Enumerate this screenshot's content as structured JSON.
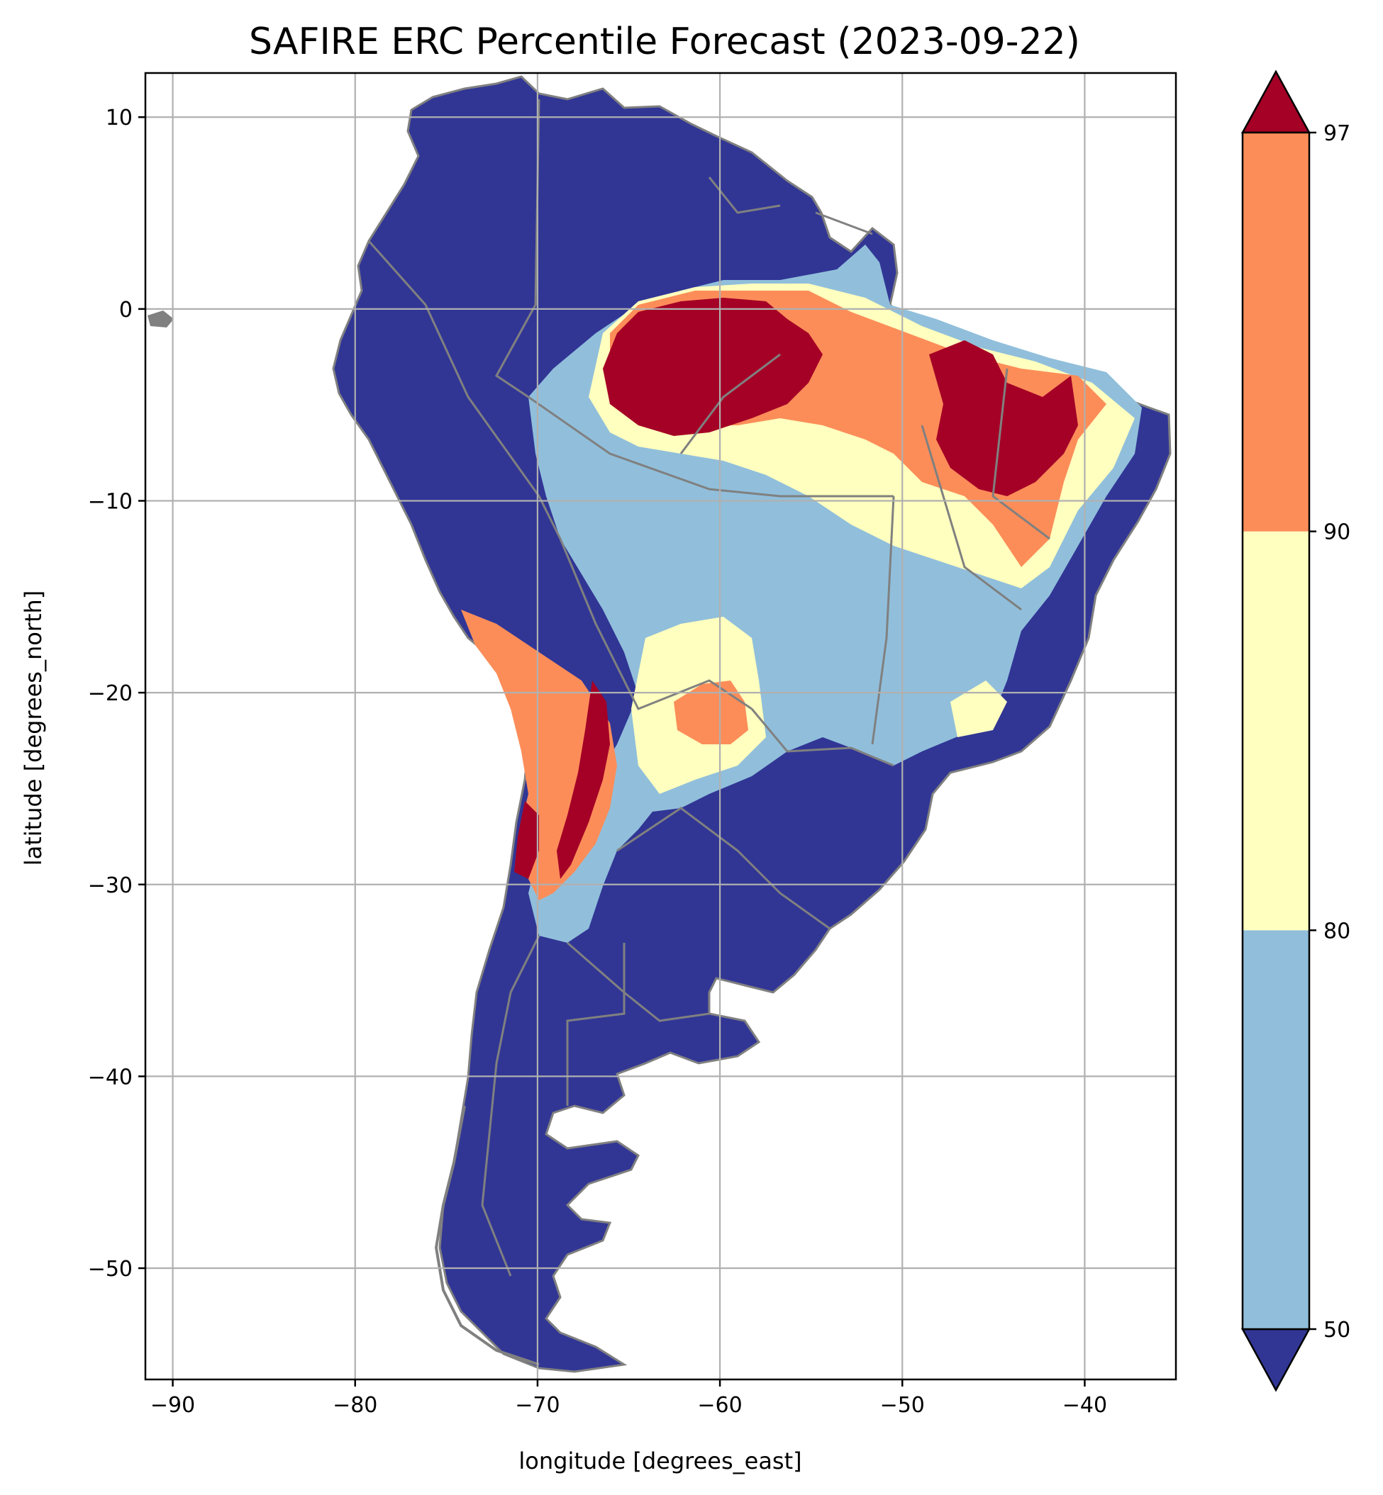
{
  "figure": {
    "title": "SAFIRE ERC Percentile Forecast (2023-09-22)"
  },
  "map": {
    "xlabel": "longitude [degrees_east]",
    "ylabel": "latitude [degrees_north]",
    "xlim": [
      -91.5,
      -35
    ],
    "ylim": [
      -55.8,
      12.3
    ],
    "xticks": [
      -90,
      -80,
      -70,
      -60,
      -50,
      -40
    ],
    "yticks": [
      10,
      0,
      -10,
      -20,
      -30,
      -40,
      -50
    ],
    "grid": true,
    "land_color": "#313695",
    "border_color": "#808080",
    "regions": [
      {
        "name": "Amazon/Para interior",
        "category": "97+"
      },
      {
        "name": "Northeast Brazil interior",
        "category": "97+"
      },
      {
        "name": "Northern Chile/Argentina Andes",
        "category": "90-97"
      },
      {
        "name": "Paraguay/Bolivia Chaco",
        "category": "90-97"
      },
      {
        "name": "Central Brazil",
        "category": "50-80"
      },
      {
        "name": "Southern Cone and Patagonia",
        "category": "<50"
      },
      {
        "name": "Colombia/Venezuela/Guianas west",
        "category": "<50"
      }
    ]
  },
  "colorbar": {
    "ticks": [
      50,
      80,
      90,
      97
    ],
    "categories": [
      {
        "range": "<50",
        "color": "#313695"
      },
      {
        "range": "50-80",
        "color": "#91bfdb"
      },
      {
        "range": "80-90",
        "color": "#ffffbf"
      },
      {
        "range": "90-97",
        "color": "#fc8d59"
      },
      {
        "range": "97+",
        "color": "#a50026"
      }
    ],
    "extend": "both"
  }
}
